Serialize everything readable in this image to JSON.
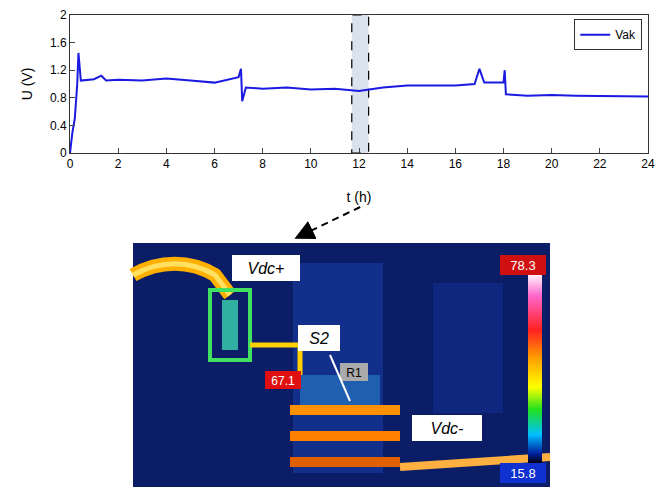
{
  "chart_data": {
    "type": "line",
    "x_label": "t (h)",
    "y_label": "U (V)",
    "xlim": [
      0,
      24
    ],
    "xticks": [
      0,
      2,
      4,
      6,
      8,
      10,
      12,
      14,
      16,
      18,
      20,
      22,
      24
    ],
    "ylim": [
      0,
      2
    ],
    "yticks": [
      0,
      0.4,
      0.8,
      1.2,
      1.6,
      2
    ],
    "grid": false,
    "legend": "upper right",
    "highlight_x": [
      11.7,
      12.4
    ],
    "series": [
      {
        "name": "Vak",
        "color": "#1a1ae0",
        "x": [
          0,
          0.1,
          0.2,
          0.3,
          0.35,
          0.45,
          1,
          1.3,
          1.5,
          2,
          3,
          4,
          5,
          6,
          7,
          7.1,
          7.15,
          7.3,
          8,
          9,
          10,
          11,
          12,
          13,
          14,
          15,
          16,
          16.8,
          17,
          17.2,
          18,
          18.05,
          18.1,
          19,
          20,
          21,
          22,
          23,
          24
        ],
        "values": [
          0,
          0.3,
          0.5,
          1.0,
          1.45,
          1.05,
          1.07,
          1.12,
          1.05,
          1.06,
          1.05,
          1.08,
          1.05,
          1.02,
          1.1,
          1.22,
          0.75,
          0.95,
          0.93,
          0.95,
          0.92,
          0.93,
          0.9,
          0.95,
          0.98,
          0.98,
          0.98,
          1.0,
          1.22,
          1.02,
          1.02,
          1.2,
          0.85,
          0.83,
          0.84,
          0.83,
          0.83,
          0.82,
          0.82
        ]
      }
    ]
  },
  "thermal_image": {
    "labels": {
      "positive": "Vdc+",
      "switch": "S2",
      "negative": "Vdc-",
      "region": "R1"
    },
    "spot_temp": 67.1,
    "max_temp": 78.3,
    "min_temp": 15.8
  }
}
